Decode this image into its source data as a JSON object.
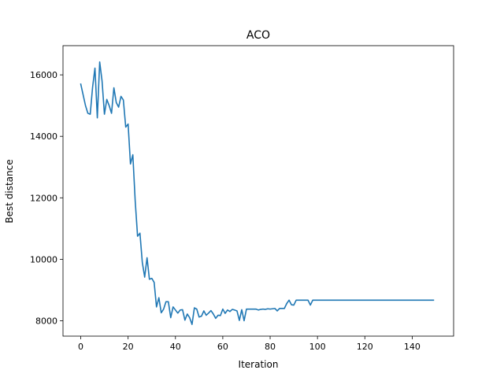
{
  "chart_data": {
    "type": "line",
    "title": "ACO",
    "xlabel": "Iteration",
    "ylabel": "Best distance",
    "xlim": [
      -7.5,
      157.5
    ],
    "ylim": [
      7500,
      16950
    ],
    "x_ticks": [
      0,
      20,
      40,
      60,
      80,
      100,
      120,
      140
    ],
    "y_ticks": [
      8000,
      10000,
      12000,
      14000,
      16000
    ],
    "grid": false,
    "legend": "none",
    "line_color": "#1f77b4",
    "series": [
      {
        "x": [
          0,
          1,
          2,
          3,
          4,
          5,
          6,
          7,
          8,
          9,
          10,
          11,
          12,
          13,
          14,
          15,
          16,
          17,
          18,
          19,
          20,
          21,
          22,
          23,
          24,
          25,
          26,
          27,
          28,
          29,
          30,
          31,
          32,
          33,
          34,
          35,
          36,
          37,
          38,
          39,
          40,
          41,
          42,
          43,
          44,
          45,
          46,
          47,
          48,
          49,
          50,
          51,
          52,
          53,
          54,
          55,
          56,
          57,
          58,
          59,
          60,
          61,
          62,
          63,
          64,
          65,
          66,
          67,
          68,
          69,
          70,
          71,
          72,
          73,
          74,
          75,
          76,
          77,
          78,
          79,
          80,
          81,
          82,
          83,
          84,
          85,
          86,
          87,
          88,
          89,
          90,
          91,
          92,
          93,
          94,
          95,
          96,
          97,
          98,
          99,
          149
        ],
        "values": [
          15700,
          15350,
          15000,
          14750,
          14720,
          15600,
          16220,
          14600,
          16420,
          15800,
          14720,
          15200,
          15000,
          14750,
          15580,
          15100,
          14950,
          15300,
          15180,
          14300,
          14400,
          13100,
          13400,
          11900,
          10750,
          10850,
          9900,
          9420,
          10050,
          9350,
          9380,
          9250,
          8450,
          8750,
          8260,
          8380,
          8620,
          8620,
          8100,
          8450,
          8350,
          8250,
          8350,
          8360,
          8020,
          8220,
          8100,
          7880,
          8420,
          8380,
          8120,
          8150,
          8320,
          8180,
          8250,
          8330,
          8220,
          8080,
          8180,
          8170,
          8380,
          8240,
          8350,
          8300,
          8370,
          8350,
          8320,
          8010,
          8360,
          8000,
          8380,
          8380,
          8380,
          8380,
          8380,
          8350,
          8370,
          8380,
          8370,
          8390,
          8380,
          8390,
          8400,
          8320,
          8400,
          8400,
          8400,
          8560,
          8670,
          8520,
          8510,
          8670,
          8670,
          8670,
          8670,
          8670,
          8670,
          8510,
          8670,
          8670,
          8670
        ]
      }
    ]
  }
}
